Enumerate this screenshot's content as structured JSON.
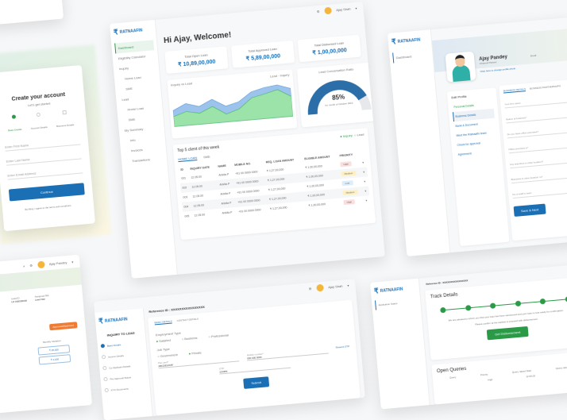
{
  "brand": {
    "name": "RATNAAFIN",
    "colors": {
      "primary": "#1b6fb5",
      "success": "#2a9a47",
      "warning": "#f07b32"
    }
  },
  "user": {
    "name": "Ajay Shah"
  },
  "signup": {
    "title": "Create your account",
    "subtitle": "Let's get started",
    "steps": [
      "Basic Details",
      "Account Details",
      "Business Details"
    ],
    "fields": [
      "Enter First Name",
      "Enter Last Name",
      "Enter Email Address"
    ],
    "button": "Continue",
    "terms": "By filing, I agree to the terms and conditions"
  },
  "dashboard": {
    "sidebar": [
      "Dashboard",
      "Eligibility Calculator",
      "Inquiry",
      "Home Loan",
      "SME",
      "Lead",
      "Home Loan",
      "SME",
      "My Summary",
      "Info",
      "Invoices",
      "Transactions"
    ],
    "greeting": "Hi Ajay, Welcome!",
    "stats": [
      {
        "label": "Total Open Loan",
        "value": "₹ 10,89,00,000"
      },
      {
        "label": "Total Approved Loan",
        "value": "₹ 5,89,00,000"
      },
      {
        "label": "Total Disbursed Loan",
        "value": "₹ 1,00,00,000"
      }
    ],
    "chart": {
      "title": "Inquiry vs Lead",
      "legend": [
        "Lead",
        "Inquiry"
      ],
      "inquiry": [
        40,
        55,
        45,
        60,
        40,
        48,
        70,
        78,
        82,
        70
      ],
      "lead": [
        25,
        35,
        28,
        42,
        20,
        30,
        55,
        62,
        70,
        50
      ],
      "colors": [
        "#9cc3ec",
        "#9be3a8"
      ]
    },
    "gauge": {
      "title": "Lead Conversation Ratio",
      "value": "85%",
      "percent": 85,
      "caption": "for month of October 2023"
    },
    "top": {
      "title": "Top 5 client of this week",
      "toggle": [
        "Inquiry",
        "Lead"
      ],
      "tabs": [
        "HOME LOAN",
        "SME"
      ],
      "headers": [
        "ID",
        "INQUIRY DATE",
        "NAME",
        "MOBILE NO.",
        "REQ. LOAN AMOUNT",
        "ELIGIBLE AMOUNT",
        "PRIORITY"
      ],
      "rows": [
        [
          "001",
          "12.05.00",
          "Ankita P",
          "+91 00 0000 0000",
          "₹ 1,27,00,000",
          "₹ 1,00,00,000",
          "High"
        ],
        [
          "002",
          "12.05.00",
          "Ankita P",
          "+91 00 0000 0000",
          "₹ 1,27,00,000",
          "₹ 1,00,00,000",
          "Medium"
        ],
        [
          "003",
          "12.05.00",
          "Ankita P",
          "+91 00 0000 0000",
          "₹ 1,27,00,000",
          "₹ 1,00,00,000",
          "Low"
        ],
        [
          "004",
          "12.05.00",
          "Ankita P",
          "+91 00 0000 0000",
          "₹ 1,27,00,000",
          "₹ 1,00,00,000",
          "Medium"
        ],
        [
          "005",
          "12.05.00",
          "Ankita P",
          "+91 00 0000 0000",
          "₹ 1,27,00,000",
          "₹ 1,00,00,000",
          "High"
        ]
      ]
    }
  },
  "profile": {
    "sidebar": [
      "Dashboard"
    ],
    "name": "Ajay Pandey",
    "role": "Channel Partner",
    "change_pic": "Click here to change profile photo",
    "email_label": "Email",
    "edit_title": "Edit Profile",
    "steps": [
      "Personal Details",
      "Business Details",
      "Bank & Document",
      "Meet the Ratnaafin team",
      "Check for approval",
      "Agreement"
    ],
    "tabs": [
      "BUSINESS DETAILS",
      "BUSINESS PARTNERSHIPS"
    ],
    "fields": [
      "Your firm name",
      "Nature of business*",
      "Do you have office premises?",
      "Office premises is*",
      "Any branches in other location?",
      "Branches in other location no*",
      "No of staff in team"
    ],
    "button": "Save & Next"
  },
  "inquiry": {
    "reference": "Reference ID : XXXXXXXXXXXXXXXX",
    "title": "INQUIRY TO LEAD",
    "steps": [
      "Basic Details",
      "Income Details",
      "Co-Applicant Details",
      "Pre Approval Status",
      "KYC Documents"
    ],
    "tabs": [
      "BASIC DETAILS",
      "CONTACT DETAILS"
    ],
    "employment_label": "Employment Type",
    "employment": [
      "Salaried",
      "Business",
      "Professional"
    ],
    "job_label": "Job Type",
    "job": [
      "Government",
      "Private"
    ],
    "pan_label": "Pan card*",
    "pan": "ABCDE1234F",
    "mobile_label": "Mobile number*",
    "mobile": "000 000 0000",
    "resend": "Resend OTP",
    "otp_label": "OTP",
    "otp": "123456",
    "button": "Submit"
  },
  "track": {
    "reference": "Reference ID : XXXXXXXXXXXXXXXX",
    "sidebar": [
      "Application Status"
    ],
    "title": "Track Details",
    "steps": 6,
    "message": "We are pleased to inform you that your loan has been sanctioned and your loan is now ready for confirmation.",
    "confirm": "Please confirm at the earliest to proceed with disbursement.",
    "button": "Get Disbursement",
    "queries_title": "Open Queries",
    "headers": [
      "Query",
      "Priority",
      "Query raised Date",
      "Query raised by"
    ],
    "row": [
      "",
      "High",
      "12.05.00",
      ""
    ]
  },
  "loan": {
    "user": "Ajay Pandey",
    "fields": [
      {
        "label": "Lead ID",
        "value": "LD 000000000"
      },
      {
        "label": "Assigned RM",
        "value": "Lead Nair"
      }
    ],
    "badge": "Approved/Approved",
    "monthly_label": "Monthly Variation",
    "amounts": [
      "₹ 25,000",
      "₹ 1,000"
    ]
  }
}
